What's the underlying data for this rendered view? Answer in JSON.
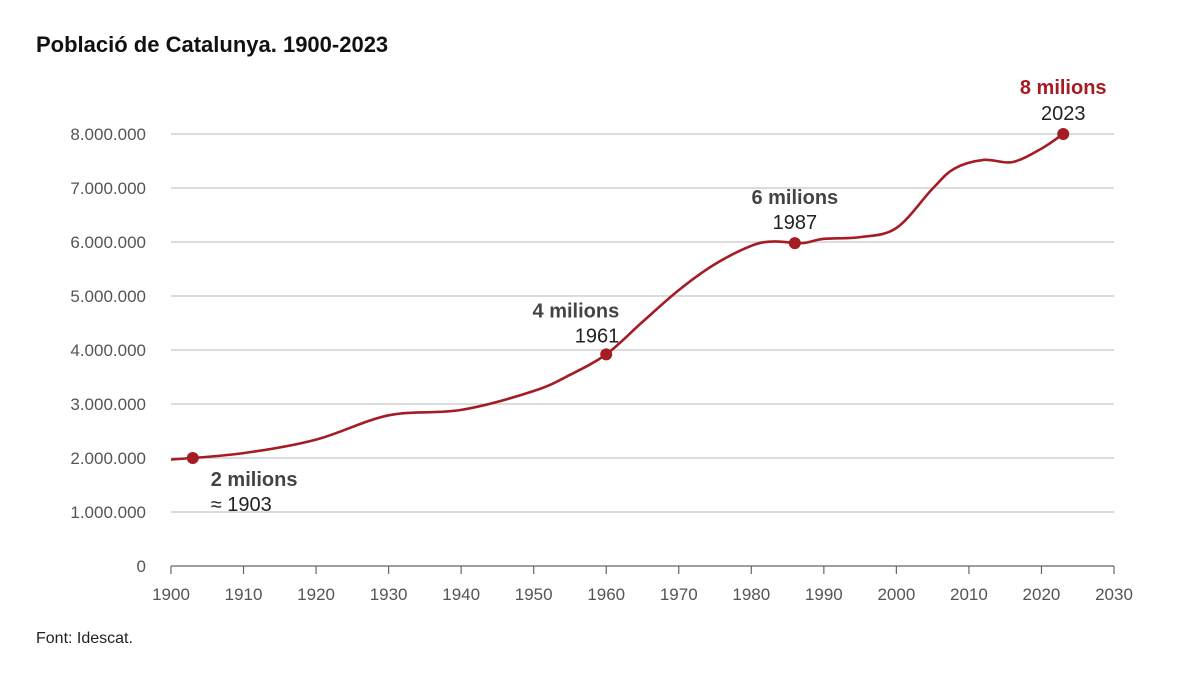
{
  "chart_data": {
    "type": "line",
    "title": "Població de Catalunya. 1900-2023",
    "source": "Font: Idescat.",
    "xlabel": "",
    "ylabel": "",
    "xlim": [
      1900,
      2030
    ],
    "ylim": [
      0,
      8000000
    ],
    "x_ticks": [
      1900,
      1910,
      1920,
      1930,
      1940,
      1950,
      1960,
      1970,
      1980,
      1990,
      2000,
      2010,
      2020,
      2030
    ],
    "y_ticks": [
      {
        "value": 0,
        "label": "0"
      },
      {
        "value": 1000000,
        "label": "1.000.000"
      },
      {
        "value": 2000000,
        "label": "2.000.000"
      },
      {
        "value": 3000000,
        "label": "3.000.000"
      },
      {
        "value": 4000000,
        "label": "4.000.000"
      },
      {
        "value": 5000000,
        "label": "5.000.000"
      },
      {
        "value": 6000000,
        "label": "6.000.000"
      },
      {
        "value": 7000000,
        "label": "7.000.000"
      },
      {
        "value": 8000000,
        "label": "8.000.000"
      }
    ],
    "grid": true,
    "line_color": "#a51c24",
    "series": [
      {
        "x": [
          1900,
          1910,
          1920,
          1930,
          1940,
          1950,
          1955,
          1960,
          1965,
          1970,
          1975,
          1980,
          1983,
          1987,
          1990,
          1995,
          2000,
          2005,
          2008,
          2012,
          2016,
          2020,
          2023
        ],
        "values": [
          1970000,
          2090000,
          2340000,
          2790000,
          2890000,
          3240000,
          3540000,
          3920000,
          4520000,
          5110000,
          5590000,
          5930000,
          6010000,
          5980000,
          6060000,
          6090000,
          6260000,
          6990000,
          7360000,
          7520000,
          7480000,
          7730000,
          8000000
        ]
      }
    ],
    "annotations": [
      {
        "x": 1903,
        "y": 2000000,
        "label": "2 milions",
        "sublabel": "≈ 1903",
        "highlight": false
      },
      {
        "x": 1960,
        "y": 3920000,
        "label": "4 milions",
        "sublabel": "1961",
        "highlight": false
      },
      {
        "x": 1986,
        "y": 5980000,
        "label": "6 milions",
        "sublabel": "1987",
        "highlight": false
      },
      {
        "x": 2023,
        "y": 8000000,
        "label": "8 milions",
        "sublabel": "2023",
        "highlight": true
      }
    ]
  }
}
